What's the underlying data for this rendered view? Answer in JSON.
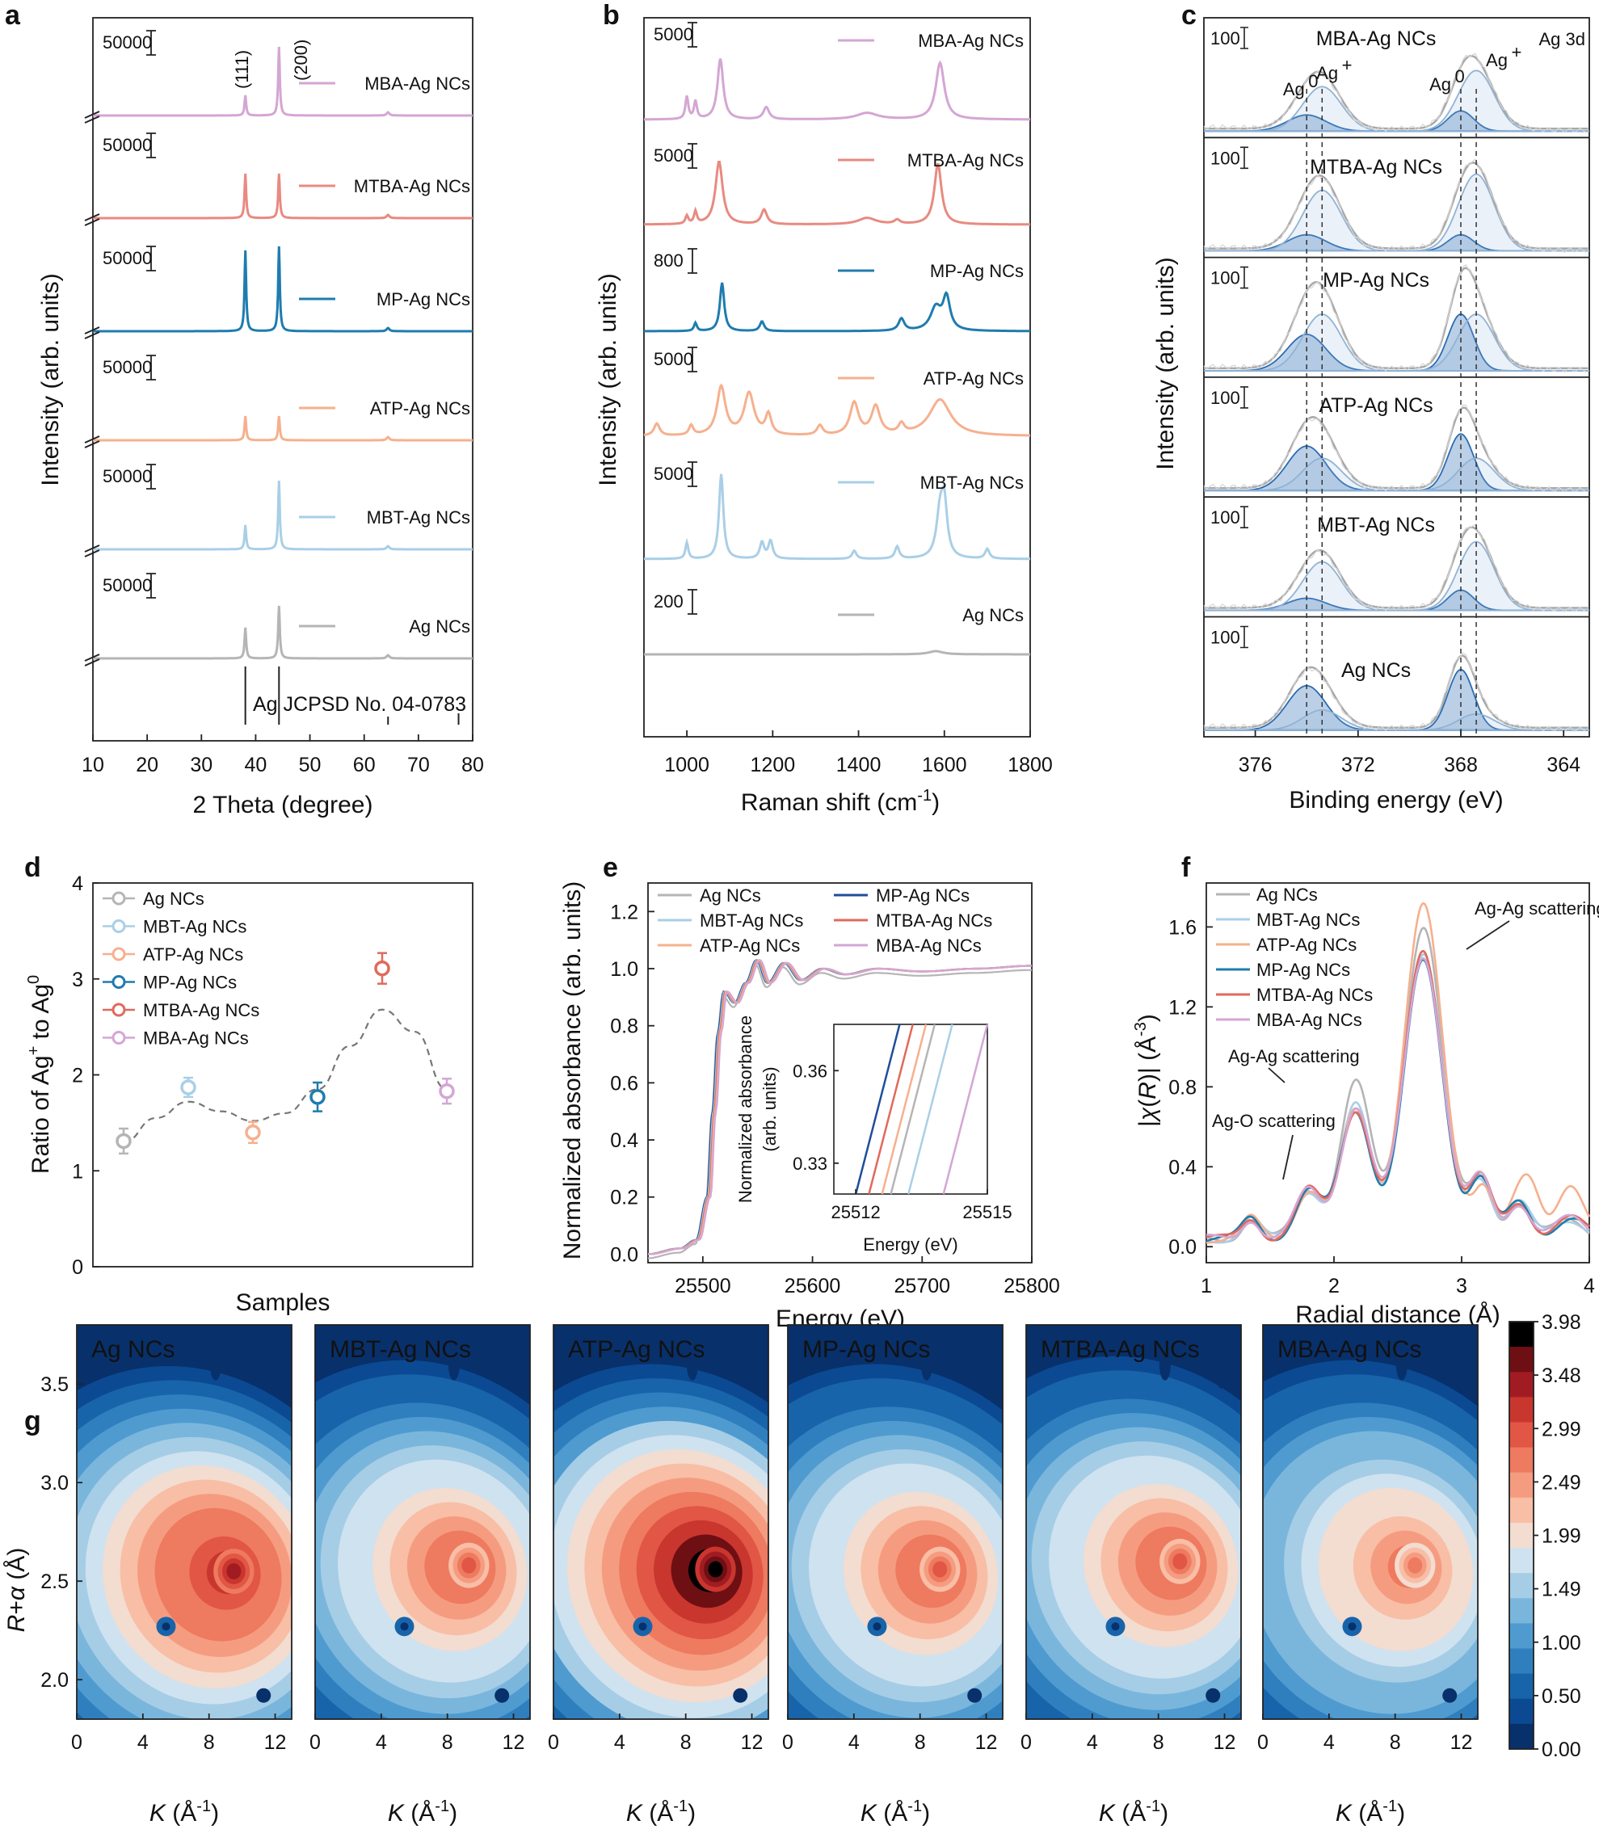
{
  "panels": {
    "a": {
      "label": "a",
      "xlabel": "2 Theta (degree)",
      "ylabel": "Intensity (arb. units)",
      "xticks": [
        "10",
        "20",
        "30",
        "40",
        "50",
        "60",
        "70",
        "80"
      ],
      "scale": "50000",
      "ref_label": "Ag JCPSD No. 04-0783",
      "peak1": "(111)",
      "peak2": "(200)"
    },
    "b": {
      "label": "b",
      "xlabel": "Raman shift (cm",
      "xlabel_sup": "-1",
      "xlabel_end": ")",
      "ylabel": "Intensity (arb. units)",
      "xticks": [
        "1000",
        "1200",
        "1400",
        "1600",
        "1800"
      ]
    },
    "c": {
      "label": "c",
      "xlabel": "Binding energy (eV)",
      "ylabel": "Intensity (arb. units)",
      "xticks": [
        "376",
        "372",
        "368",
        "364"
      ],
      "corner": "Ag 3d",
      "scale": "100"
    },
    "d": {
      "label": "d",
      "xlabel": "Samples",
      "ylabel": "Ratio of Ag+ to Ag0",
      "yticks": [
        "0",
        "1",
        "2",
        "3",
        "4"
      ]
    },
    "e": {
      "label": "e",
      "xlabel": "Energy (eV)",
      "ylabel": "Normalized absorbance (arb. units)",
      "xticks": [
        "25500",
        "25600",
        "25700",
        "25800"
      ],
      "yticks": [
        "0.0",
        "0.2",
        "0.4",
        "0.6",
        "0.8",
        "1.0",
        "1.2"
      ],
      "inset_xlabel": "Energy (eV)",
      "inset_ylabel": "Normalized absorbance (arb. units)",
      "inset_xticks": [
        "25512",
        "25515"
      ],
      "inset_yticks": [
        "0.33",
        "0.36"
      ]
    },
    "f": {
      "label": "f",
      "xlabel": "Radial distance (Å)",
      "ylabel": "|χ(R)| (Å-3)",
      "xticks": [
        "1",
        "2",
        "3",
        "4"
      ],
      "yticks": [
        "0.0",
        "0.4",
        "0.8",
        "1.2",
        "1.6"
      ],
      "ann1": "Ag-Ag scattering",
      "ann2": "Ag-Ag scattering",
      "ann3": "Ag-O scattering"
    },
    "g": {
      "label": "g",
      "xlabel": "K (Å-1)",
      "ylabel": "R+α (Å)",
      "xticks": [
        "0",
        "4",
        "8",
        "12"
      ],
      "yticks": [
        "2.0",
        "2.5",
        "3.0",
        "3.5"
      ],
      "colorbar": [
        "3.98",
        "3.48",
        "2.99",
        "2.49",
        "1.99",
        "1.49",
        "1.00",
        "0.50",
        "0.00"
      ]
    }
  },
  "chart_data": [
    {
      "panel": "a",
      "type": "line",
      "series": [
        {
          "name": "MBA-Ag NCs",
          "color": "#d4a6d4"
        },
        {
          "name": "MTBA-Ag NCs",
          "color": "#e88a80"
        },
        {
          "name": "MP-Ag NCs",
          "color": "#1f7cae"
        },
        {
          "name": "ATP-Ag NCs",
          "color": "#f6b08e"
        },
        {
          "name": "MBT-Ag NCs",
          "color": "#a9cfe6"
        },
        {
          "name": "Ag NCs",
          "color": "#b5b5b5"
        }
      ],
      "peaks_2theta": [
        38.1,
        44.3
      ],
      "reference_lines": [
        38.1,
        44.3,
        64.4,
        77.4
      ],
      "xlim": [
        10,
        80
      ]
    },
    {
      "panel": "b",
      "type": "line",
      "series": [
        {
          "name": "MBA-Ag NCs",
          "scale": "5000",
          "color": "#d4a6d4"
        },
        {
          "name": "MTBA-Ag NCs",
          "scale": "5000",
          "color": "#e88a80"
        },
        {
          "name": "MP-Ag NCs",
          "scale": "800",
          "color": "#1f7cae"
        },
        {
          "name": "ATP-Ag NCs",
          "scale": "5000",
          "color": "#f6b08e"
        },
        {
          "name": "MBT-Ag NCs",
          "scale": "5000",
          "color": "#a9cfe6"
        },
        {
          "name": "Ag NCs",
          "scale": "200",
          "color": "#b5b5b5"
        }
      ],
      "xlim": [
        900,
        1800
      ]
    },
    {
      "panel": "c",
      "type": "line",
      "series": [
        "MBA-Ag NCs",
        "MTBA-Ag NCs",
        "MP-Ag NCs",
        "ATP-Ag NCs",
        "MBT-Ag NCs",
        "Ag NCs"
      ],
      "peak_labels": [
        "Ag0",
        "Ag+",
        "Ag0",
        "Ag+"
      ],
      "component_energies": [
        374.0,
        373.4,
        368.0,
        367.4
      ],
      "xlim": [
        378,
        363
      ]
    },
    {
      "panel": "d",
      "type": "scatter",
      "categories": [
        "Ag NCs",
        "MBT-Ag NCs",
        "ATP-Ag NCs",
        "MP-Ag NCs",
        "MTBA-Ag NCs",
        "MBA-Ag NCs"
      ],
      "values": [
        1.31,
        1.87,
        1.4,
        1.77,
        3.11,
        1.83
      ],
      "errors": [
        0.13,
        0.1,
        0.11,
        0.15,
        0.16,
        0.13
      ],
      "colors": [
        "#b5b5b5",
        "#a9cfe6",
        "#f6b08e",
        "#1f7cae",
        "#e06a5c",
        "#d4a6d4"
      ],
      "ylim": [
        0,
        4
      ]
    },
    {
      "panel": "e",
      "type": "line",
      "xlim": [
        25450,
        25800
      ],
      "ylim": [
        0,
        1.25
      ],
      "series": [
        {
          "name": "Ag NCs",
          "color": "#b5b5b5"
        },
        {
          "name": "MP-Ag NCs",
          "color": "#1f4e99"
        },
        {
          "name": "MBT-Ag NCs",
          "color": "#a9cfe6"
        },
        {
          "name": "MTBA-Ag NCs",
          "color": "#e06a5c"
        },
        {
          "name": "ATP-Ag NCs",
          "color": "#f6b08e"
        },
        {
          "name": "MBA-Ag NCs",
          "color": "#d4a6d4"
        }
      ],
      "x": [
        25450,
        25480,
        25495,
        25505,
        25510,
        25515,
        25520,
        25530,
        25540,
        25550,
        25560,
        25575,
        25590,
        25610,
        25630,
        25660,
        25700,
        25750,
        25800
      ],
      "y": [
        0.0,
        0.02,
        0.05,
        0.2,
        0.5,
        0.78,
        0.92,
        0.88,
        0.95,
        1.03,
        0.95,
        1.02,
        0.96,
        1.0,
        0.98,
        1.0,
        0.99,
        1.0,
        1.01
      ],
      "inset_xlim": [
        25511.5,
        25515
      ],
      "inset_ylim": [
        0.32,
        0.375
      ]
    },
    {
      "panel": "f",
      "type": "line",
      "xlim": [
        1,
        4
      ],
      "ylim": [
        0,
        1.75
      ],
      "series": [
        {
          "name": "Ag NCs",
          "color": "#b5b5b5",
          "peak_main": 1.57,
          "peak_secondary": 0.78
        },
        {
          "name": "MBT-Ag NCs",
          "color": "#a9cfe6",
          "peak_main": 1.42,
          "peak_secondary": 0.66
        },
        {
          "name": "ATP-Ag NCs",
          "color": "#f6b08e",
          "peak_main": 1.66,
          "peak_secondary": 0.64
        },
        {
          "name": "MP-Ag NCs",
          "color": "#1f7cae",
          "peak_main": 1.38,
          "peak_secondary": 0.64
        },
        {
          "name": "MTBA-Ag NCs",
          "color": "#e06a5c",
          "peak_main": 1.44,
          "peak_secondary": 0.65
        },
        {
          "name": "MBA-Ag NCs",
          "color": "#d4a6d4",
          "peak_main": 1.42,
          "peak_secondary": 0.66
        }
      ]
    },
    {
      "panel": "g",
      "type": "heatmap",
      "maps": [
        {
          "name": "Ag NCs",
          "max": 3.4,
          "center_k": 9.5,
          "center_r": 2.55
        },
        {
          "name": "MBT-Ag NCs",
          "max": 2.9,
          "center_k": 9.3,
          "center_r": 2.58
        },
        {
          "name": "ATP-Ag NCs",
          "max": 3.98,
          "center_k": 9.8,
          "center_r": 2.56
        },
        {
          "name": "MP-Ag NCs",
          "max": 2.9,
          "center_k": 9.2,
          "center_r": 2.56
        },
        {
          "name": "MTBA-Ag NCs",
          "max": 2.9,
          "center_k": 9.3,
          "center_r": 2.6
        },
        {
          "name": "MBA-Ag NCs",
          "max": 2.7,
          "center_k": 9.2,
          "center_r": 2.58
        }
      ],
      "xlim": [
        0,
        13
      ],
      "ylim": [
        1.8,
        3.8
      ],
      "zlim": [
        0,
        3.98
      ],
      "colors": [
        "#08306b",
        "#0b4a92",
        "#1864aa",
        "#2f7fbf",
        "#4f9bd0",
        "#7ab6dc",
        "#a6cde6",
        "#cfe2f0",
        "#f3dcd0",
        "#f8bea6",
        "#f59c80",
        "#ee7a5f",
        "#e15644",
        "#c9362e",
        "#a11c22",
        "#6e0f14",
        "#000000"
      ]
    }
  ]
}
